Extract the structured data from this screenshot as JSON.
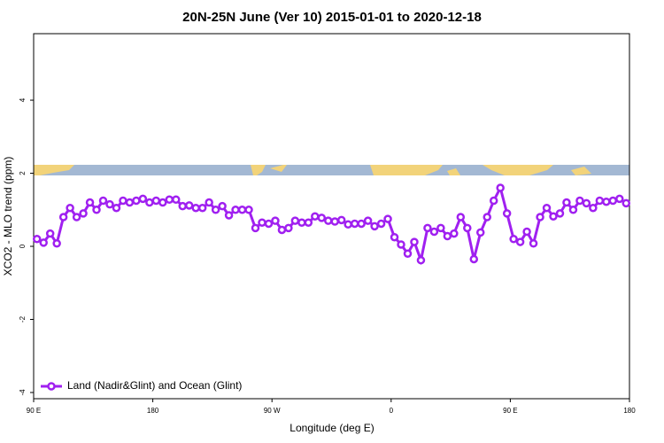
{
  "chart_data": {
    "type": "line",
    "title": "20N-25N June (Ver 10)   2015-01-01 to 2020-12-18",
    "x_label": "Longitude (deg E)",
    "y_label": "XCO2 - MLO trend (ppm)",
    "legend_position": "bottom-left",
    "xlim": [
      90,
      540
    ],
    "ylim": [
      -4.17,
      5.82
    ],
    "xticks": [
      {
        "value": 90,
        "label": "90 E"
      },
      180,
      {
        "value": 270,
        "label": "90 W"
      },
      {
        "value": 360,
        "label": "0"
      },
      {
        "value": 450,
        "label": "90 E"
      },
      {
        "value": 540,
        "label": "180"
      }
    ],
    "yticks": [
      -4,
      -2,
      0,
      2,
      4
    ],
    "series": [
      {
        "name": "Land (Nadir&Glint) and Ocean (Glint)",
        "color": "#a020f0",
        "x": [
          92.5,
          97.5,
          102.5,
          107.5,
          112.5,
          117.5,
          122.5,
          127.5,
          132.5,
          137.5,
          142.5,
          147.5,
          152.5,
          157.5,
          162.5,
          167.5,
          172.5,
          177.5,
          182.5,
          187.5,
          192.5,
          197.5,
          202.5,
          207.5,
          212.5,
          217.5,
          222.5,
          227.5,
          232.5,
          237.5,
          242.5,
          247.5,
          252.5,
          257.5,
          262.5,
          267.5,
          272.5,
          277.5,
          282.5,
          287.5,
          292.5,
          297.5,
          302.5,
          307.5,
          312.5,
          317.5,
          322.5,
          327.5,
          332.5,
          337.5,
          342.5,
          347.5,
          352.5,
          357.5,
          362.5,
          367.5,
          372.5,
          377.5,
          382.5,
          387.5,
          392.5,
          397.5,
          402.5,
          407.5,
          412.5,
          417.5,
          422.5,
          427.5,
          432.5,
          437.5,
          442.5,
          447.5,
          452.5,
          457.5,
          462.5,
          467.5,
          472.5,
          477.5,
          482.5,
          487.5,
          492.5,
          497.5,
          502.5,
          507.5,
          512.5,
          517.5,
          522.5,
          527.5,
          532.5,
          537.5
        ],
        "values": [
          0.2,
          0.1,
          0.35,
          0.08,
          0.8,
          1.05,
          0.8,
          0.9,
          1.2,
          1.0,
          1.25,
          1.15,
          1.05,
          1.25,
          1.2,
          1.25,
          1.3,
          1.2,
          1.25,
          1.2,
          1.28,
          1.28,
          1.1,
          1.12,
          1.05,
          1.05,
          1.2,
          1.0,
          1.1,
          0.85,
          1.0,
          1.0,
          1.0,
          0.5,
          0.65,
          0.62,
          0.7,
          0.45,
          0.5,
          0.7,
          0.65,
          0.65,
          0.82,
          0.78,
          0.7,
          0.68,
          0.72,
          0.6,
          0.62,
          0.62,
          0.7,
          0.55,
          0.62,
          0.75,
          0.25,
          0.05,
          -0.2,
          0.12,
          -0.38,
          0.5,
          0.4,
          0.5,
          0.28,
          0.35,
          0.8,
          0.5,
          -0.35,
          0.38,
          0.8,
          1.25,
          1.6,
          0.9,
          0.2,
          0.12,
          0.4,
          0.08,
          0.8,
          1.05,
          0.82,
          0.9,
          1.2,
          1.0,
          1.25,
          1.18,
          1.05,
          1.25,
          1.22,
          1.25,
          1.3,
          1.18
        ]
      }
    ]
  }
}
